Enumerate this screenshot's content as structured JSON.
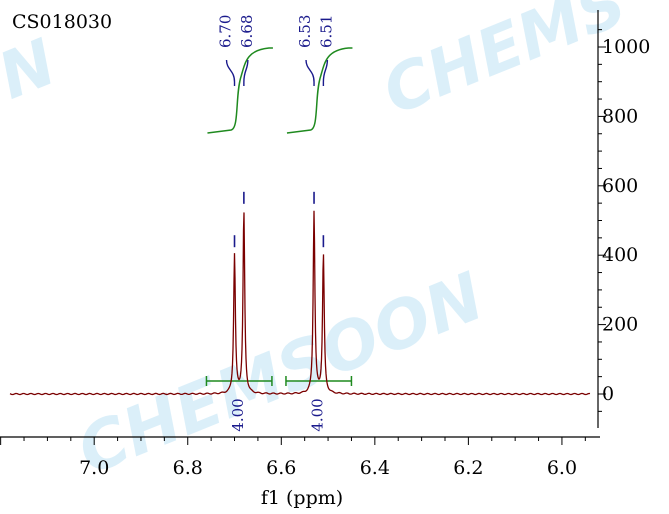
{
  "sample_id": "CS018030",
  "watermark": {
    "text1": "CHEMS",
    "text2": "ON",
    "text3": "CHEMSOON",
    "registered": "®"
  },
  "colors": {
    "spectrum": "#7a0000",
    "integral": "#1f8a1f",
    "label": "#1a1a8c",
    "axis": "#000000",
    "watermark": "#bfe3f5"
  },
  "chart_data": {
    "type": "line",
    "title": "",
    "xlabel": "f1 (ppm)",
    "ylabel": "",
    "xlim": [
      7.18,
      5.94
    ],
    "ylim": [
      -100,
      1080
    ],
    "x_ticks": [
      7.0,
      6.8,
      6.6,
      6.4,
      6.2,
      6.0
    ],
    "x_tick_labels": [
      "7.0",
      "6.8",
      "6.6",
      "6.4",
      "6.2",
      "6.0"
    ],
    "y_ticks": [
      0,
      200,
      400,
      600,
      800,
      1000
    ],
    "y_tick_labels": [
      "0",
      "200",
      "400",
      "600",
      "800",
      "1000"
    ],
    "peaks": [
      {
        "ppm": 6.7,
        "label": "6.70",
        "height": 400
      },
      {
        "ppm": 6.68,
        "label": "6.68",
        "height": 525
      },
      {
        "ppm": 6.53,
        "label": "6.53",
        "height": 525
      },
      {
        "ppm": 6.51,
        "label": "6.51",
        "height": 400
      }
    ],
    "integrals": [
      {
        "from": 6.76,
        "to": 6.62,
        "center": 6.69,
        "value": "4.00"
      },
      {
        "from": 6.59,
        "to": 6.45,
        "center": 6.52,
        "value": "4.00"
      }
    ]
  }
}
